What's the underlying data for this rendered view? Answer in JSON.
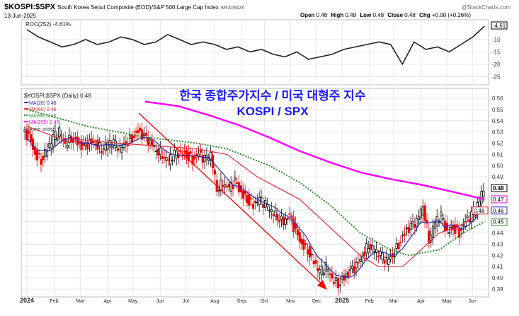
{
  "header": {
    "symbol": "$KOSPI:$SPX",
    "description": "South Korea Seoul Composite (EOD)/S&P 500 Large Cap Index",
    "exchange": "KRX/INDX",
    "date": "13-Jun-2025",
    "watermark": "@StockCharts.com",
    "ohlc": [
      {
        "k": "Open",
        "v": "0.48"
      },
      {
        "k": "High",
        "v": "0.49"
      },
      {
        "k": "Low",
        "v": "0.48"
      },
      {
        "k": "Close",
        "v": "0.48"
      },
      {
        "k": "Chg",
        "v": "+0.00 (+0.26%)"
      }
    ]
  },
  "annotation": {
    "line1": "한국 종합주가지수 / 미국 대형주 지수",
    "line2": "KOSPI / SPX",
    "color": "#1a1aff"
  },
  "chart_data": [
    {
      "type": "line",
      "title": "ROC(252) -4.61%",
      "ylim": [
        -28,
        -3
      ],
      "yticks": [
        -10,
        -15,
        -20,
        -25
      ],
      "last_label": "-4.61",
      "values": [
        -6,
        -9,
        -11,
        -13,
        -12,
        -10,
        -12,
        -11,
        -9,
        -10,
        -12,
        -11,
        -8,
        -10,
        -12,
        -11,
        -12,
        -14,
        -13,
        -15,
        -14,
        -16,
        -17,
        -15,
        -18,
        -17,
        -16,
        -14,
        -13,
        -12,
        -11,
        -12,
        -20,
        -11,
        -14,
        -13,
        -15,
        -12,
        -9,
        -4.61
      ]
    },
    {
      "type": "candlestick",
      "title": "$KOSPI:$SPX (Daily) 0.48",
      "ylim": [
        0.385,
        0.565
      ],
      "yticks": [
        0.56,
        0.55,
        0.54,
        0.53,
        0.52,
        0.51,
        0.5,
        0.49,
        0.48,
        0.47,
        0.46,
        0.45,
        0.44,
        0.43,
        0.42,
        0.41,
        0.4,
        0.39
      ],
      "xticks": [
        "2024",
        "Feb",
        "Mar",
        "Apr",
        "May",
        "Jun",
        "Jul",
        "Aug",
        "Sep",
        "Oct",
        "Nov",
        "Dec",
        "2025",
        "Feb",
        "Mar",
        "Apr",
        "May",
        "Jun"
      ],
      "xtick_weeks": [
        0,
        4.5,
        8.8,
        13.3,
        17.5,
        22,
        26.2,
        31,
        35.4,
        39.2,
        43.5,
        47.8,
        52,
        56.5,
        60.5,
        65,
        69.3,
        73.5
      ],
      "closes": [
        0.525,
        0.51,
        0.505,
        0.515,
        0.525,
        0.53,
        0.52,
        0.525,
        0.52,
        0.515,
        0.52,
        0.52,
        0.515,
        0.52,
        0.52,
        0.515,
        0.52,
        0.525,
        0.53,
        0.525,
        0.52,
        0.515,
        0.51,
        0.505,
        0.51,
        0.51,
        0.51,
        0.505,
        0.51,
        0.505,
        0.51,
        0.48,
        0.485,
        0.48,
        0.485,
        0.475,
        0.47,
        0.465,
        0.47,
        0.465,
        0.46,
        0.455,
        0.45,
        0.455,
        0.44,
        0.43,
        0.425,
        0.415,
        0.405,
        0.41,
        0.4,
        0.395,
        0.4,
        0.405,
        0.41,
        0.42,
        0.43,
        0.425,
        0.42,
        0.415,
        0.42,
        0.43,
        0.44,
        0.445,
        0.45,
        0.465,
        0.435,
        0.45,
        0.455,
        0.44,
        0.445,
        0.44,
        0.45,
        0.455,
        0.465,
        0.48
      ],
      "series": [
        {
          "name": "MA(20) 0.46",
          "color": "#2b2bb0",
          "last": "0.46",
          "compute": 4
        },
        {
          "name": "MA(60) 0.46",
          "color": "#e03040",
          "last": "0.46",
          "points": [
            [
              0,
              0.535
            ],
            [
              5,
              0.525
            ],
            [
              15,
              0.52
            ],
            [
              28,
              0.515
            ],
            [
              33,
              0.51
            ],
            [
              38,
              0.49
            ],
            [
              45,
              0.47
            ],
            [
              50,
              0.445
            ],
            [
              55,
              0.42
            ],
            [
              58,
              0.41
            ],
            [
              62,
              0.41
            ],
            [
              65,
              0.425
            ],
            [
              68,
              0.44
            ],
            [
              71,
              0.445
            ],
            [
              75.5,
              0.46
            ]
          ]
        },
        {
          "name": "MA(90) 0.45",
          "color": "#2a8a2a",
          "last": "0.45",
          "dotted": true,
          "points": [
            [
              0,
              0.55
            ],
            [
              10,
              0.535
            ],
            [
              20,
              0.525
            ],
            [
              28,
              0.52
            ],
            [
              33,
              0.515
            ],
            [
              40,
              0.5
            ],
            [
              45,
              0.485
            ],
            [
              50,
              0.465
            ],
            [
              55,
              0.44
            ],
            [
              60,
              0.425
            ],
            [
              63,
              0.42
            ],
            [
              68,
              0.425
            ],
            [
              72,
              0.44
            ],
            [
              75.5,
              0.45
            ]
          ]
        },
        {
          "name": "MA(200) 0.47",
          "color": "#ff00ff",
          "last": "0.47",
          "points": [
            [
              19.5,
              0.557
            ],
            [
              25,
              0.553
            ],
            [
              30,
              0.545
            ],
            [
              35,
              0.536
            ],
            [
              40,
              0.525
            ],
            [
              45,
              0.513
            ],
            [
              50,
              0.503
            ],
            [
              55,
              0.494
            ],
            [
              60,
              0.488
            ],
            [
              65,
              0.483
            ],
            [
              70,
              0.477
            ],
            [
              75.5,
              0.47
            ]
          ]
        }
      ],
      "volume_label": "Volume undef",
      "last_label": "0.48"
    }
  ]
}
